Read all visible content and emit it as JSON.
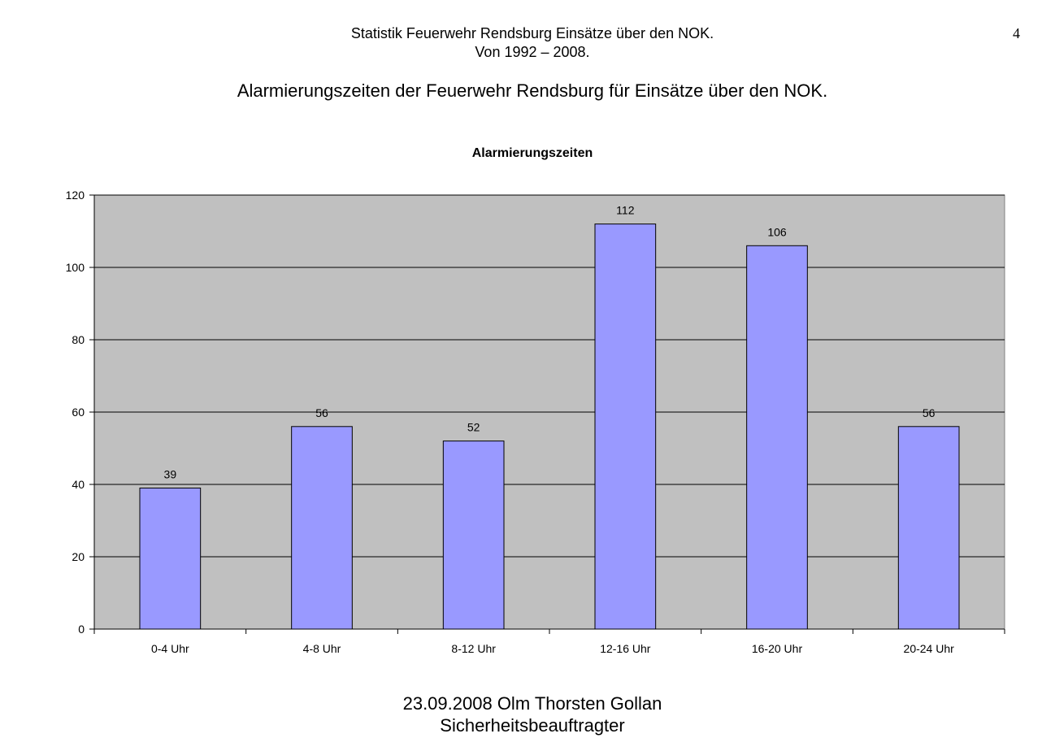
{
  "header": {
    "line1": "Statistik Feuerwehr Rendsburg  Einsätze über den NOK.",
    "line2": "Von 1992 – 2008.",
    "page_number": "4"
  },
  "heading": "Alarmierungszeiten der Feuerwehr Rendsburg für Einsätze über den NOK.",
  "chart_data": {
    "type": "bar",
    "title": "Alarmierungszeiten",
    "xlabel": "",
    "ylabel": "",
    "categories": [
      "0-4 Uhr",
      "4-8 Uhr",
      "8-12 Uhr",
      "12-16 Uhr",
      "16-20 Uhr",
      "20-24 Uhr"
    ],
    "values": [
      39,
      56,
      52,
      112,
      106,
      56
    ],
    "ylim": [
      0,
      120
    ],
    "yticks": [
      0,
      20,
      40,
      60,
      80,
      100,
      120
    ],
    "grid": true,
    "legend": "none",
    "data_labels": true,
    "colors": {
      "bar_fill": "#9999ff",
      "bar_stroke": "#000000",
      "plot_background": "#c0c0c0",
      "gridline": "#000000"
    }
  },
  "footer": {
    "line1": "23.09.2008 Olm Thorsten Gollan",
    "line2": "Sicherheitsbeauftragter"
  }
}
